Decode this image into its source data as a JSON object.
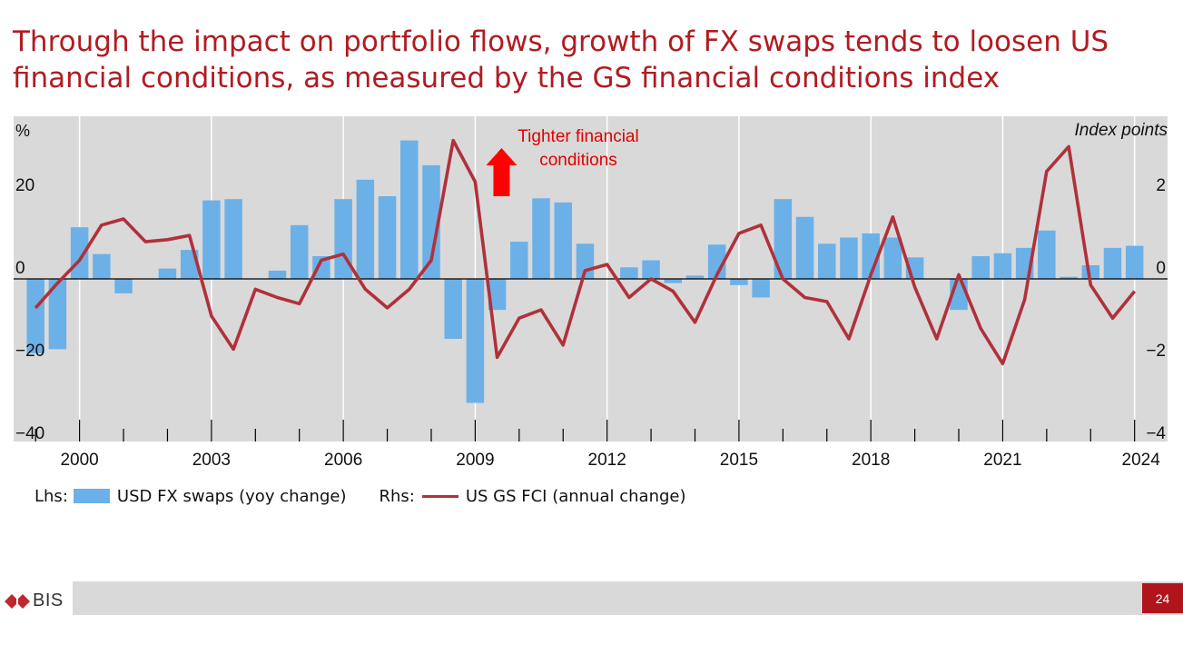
{
  "slide": {
    "title_line1": "Through the impact on portfolio flows, growth of FX swaps tends to loosen US",
    "title_line2": "financial conditions, as measured by the GS financial conditions index",
    "page_number": "24",
    "logo_text": "BIS"
  },
  "colors": {
    "title": "#b01c22",
    "bars": "#6cb0e8",
    "line": "#b0313a",
    "plot_background": "#d9d9d9",
    "annotation": "#e00000",
    "arrow": "#ff0000"
  },
  "legend": {
    "lhs_prefix": "Lhs:",
    "bar_label": "USD FX swaps (yoy change)",
    "rhs_prefix": "Rhs:",
    "line_label": "US GS FCI (annual change)"
  },
  "chart_data": {
    "type": "bar+line",
    "left_axis": {
      "unit_label": "%",
      "ylim": [
        -40,
        40
      ],
      "ticks": [
        20,
        0,
        -20,
        -40
      ],
      "tick_labels": [
        "20",
        "0",
        "−20",
        "−40"
      ]
    },
    "right_axis": {
      "unit_label": "Index points",
      "ylim": [
        -4,
        4
      ],
      "ticks": [
        2,
        0,
        -2,
        -4
      ],
      "tick_labels": [
        "2",
        "0",
        "−2",
        "−4"
      ]
    },
    "x_axis": {
      "range": [
        1998.5,
        2024.75
      ],
      "tick_labels": [
        "2000",
        "2003",
        "2006",
        "2009",
        "2012",
        "2015",
        "2018",
        "2021",
        "2024"
      ],
      "tick_positions": [
        2000,
        2003,
        2006,
        2009,
        2012,
        2015,
        2018,
        2021,
        2024
      ]
    },
    "grid": "vertical lines at labelled years",
    "annotation": {
      "text_line1": "Tighter financial",
      "text_line2": "conditions",
      "arrow": "up",
      "x": 2009.6
    },
    "series": [
      {
        "name": "USD FX swaps (yoy change)",
        "type": "bar",
        "axis": "left",
        "x": [
          1999.0,
          1999.5,
          2000.0,
          2000.5,
          2001.0,
          2001.5,
          2002.0,
          2002.5,
          2003.0,
          2003.5,
          2004.0,
          2004.5,
          2005.0,
          2005.5,
          2006.0,
          2006.5,
          2007.0,
          2007.5,
          2008.0,
          2008.5,
          2009.0,
          2009.5,
          2010.0,
          2010.5,
          2011.0,
          2011.5,
          2012.0,
          2012.5,
          2013.0,
          2013.5,
          2014.0,
          2014.5,
          2015.0,
          2015.5,
          2016.0,
          2016.5,
          2017.0,
          2017.5,
          2018.0,
          2018.5,
          2019.0,
          2019.5,
          2020.0,
          2020.5,
          2021.0,
          2021.5,
          2022.0,
          2022.5,
          2023.0,
          2023.5,
          2024.0
        ],
        "values": [
          -18,
          -17,
          12.5,
          6,
          -3.5,
          0,
          2.5,
          7,
          19,
          19.3,
          0,
          2,
          13,
          5.5,
          19.3,
          24,
          20,
          33.5,
          27.5,
          -14.5,
          -30,
          -7.5,
          9,
          19.5,
          18.5,
          8.5,
          0,
          2.8,
          4.5,
          -1,
          0.8,
          8.3,
          -1.5,
          -4.5,
          19.3,
          15,
          8.5,
          10,
          11,
          10,
          5.2,
          0,
          -7.5,
          5.5,
          6.2,
          7.5,
          11.7,
          0.5,
          3.3,
          7.5,
          8
        ]
      },
      {
        "name": "US GS FCI (annual change)",
        "type": "line",
        "axis": "right",
        "x": [
          1999.0,
          1999.5,
          2000.0,
          2000.5,
          2001.0,
          2001.5,
          2002.0,
          2002.5,
          2003.0,
          2003.5,
          2004.0,
          2004.5,
          2005.0,
          2005.5,
          2006.0,
          2006.5,
          2007.0,
          2007.5,
          2008.0,
          2008.5,
          2009.0,
          2009.5,
          2010.0,
          2010.5,
          2011.0,
          2011.5,
          2012.0,
          2012.5,
          2013.0,
          2013.5,
          2014.0,
          2014.5,
          2015.0,
          2015.5,
          2016.0,
          2016.5,
          2017.0,
          2017.5,
          2018.0,
          2018.5,
          2019.0,
          2019.5,
          2020.0,
          2020.5,
          2021.0,
          2021.5,
          2022.0,
          2022.5,
          2023.0,
          2023.5,
          2024.0
        ],
        "values": [
          -0.7,
          -0.1,
          0.45,
          1.3,
          1.45,
          0.9,
          0.95,
          1.05,
          -0.9,
          -1.7,
          -0.25,
          -0.45,
          -0.6,
          0.45,
          0.6,
          -0.25,
          -0.7,
          -0.25,
          0.45,
          3.35,
          2.35,
          -1.9,
          -0.95,
          -0.75,
          -1.6,
          0.2,
          0.35,
          -0.45,
          0,
          -0.3,
          -1.05,
          0.1,
          1.1,
          1.3,
          0,
          -0.45,
          -0.55,
          -1.45,
          0.1,
          1.5,
          -0.2,
          -1.45,
          0.1,
          -1.2,
          -2.05,
          -0.5,
          2.6,
          3.2,
          -0.15,
          -0.95,
          -0.3
        ]
      }
    ]
  }
}
